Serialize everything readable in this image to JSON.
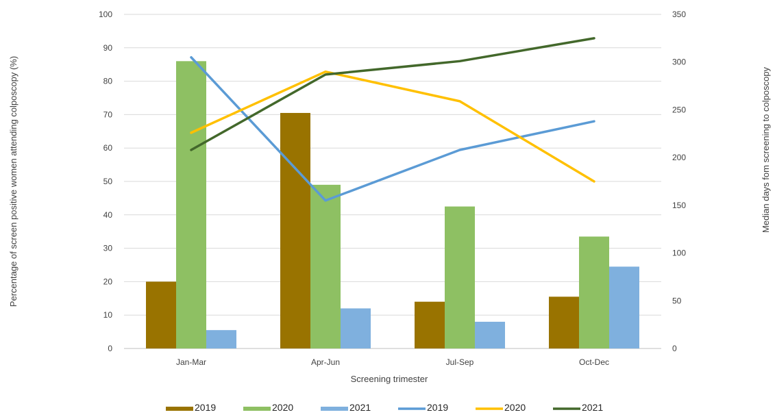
{
  "chart_data": {
    "type": "bar",
    "categories": [
      "Jan-Mar",
      "Apr-Jun",
      "Jul-Sep",
      "Oct-Dec"
    ],
    "xlabel": "Screening trimester",
    "ylabel": "Percentage of screen positive women attending colposcopy (%)",
    "y2label": "Median days fom screening to colposcopy",
    "ylim": [
      0,
      100
    ],
    "y2lim": [
      0,
      350
    ],
    "yticks": [
      0,
      10,
      20,
      30,
      40,
      50,
      60,
      70,
      80,
      90,
      100
    ],
    "y2ticks": [
      0,
      50,
      100,
      150,
      200,
      250,
      300,
      350
    ],
    "grid": true,
    "legend_position": "bottom",
    "bar_series": [
      {
        "name": "2019",
        "color": "#997300",
        "values": [
          20,
          70.5,
          14,
          15.5
        ]
      },
      {
        "name": "2020",
        "color": "#8ec063",
        "values": [
          86,
          49,
          42.5,
          33.5
        ]
      },
      {
        "name": "2021",
        "color": "#7fb0de",
        "values": [
          5.5,
          12,
          8,
          24.5
        ]
      }
    ],
    "line_series": [
      {
        "name": "2019",
        "color": "#5b9bd5",
        "axis": "right",
        "values": [
          305,
          155,
          208,
          238
        ]
      },
      {
        "name": "2020",
        "color": "#ffc000",
        "axis": "right",
        "values": [
          226,
          290,
          259,
          175
        ]
      },
      {
        "name": "2021",
        "color": "#43682b",
        "axis": "right",
        "values": [
          208,
          287,
          301,
          325
        ]
      }
    ]
  }
}
